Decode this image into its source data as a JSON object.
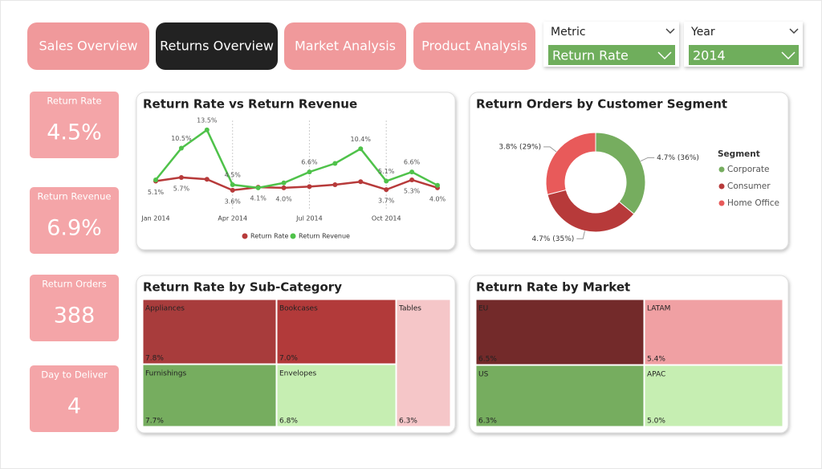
{
  "nav": [
    "Sales Overview",
    "Returns Overview",
    "Market Analysis",
    "Product Analysis"
  ],
  "filters": [
    {
      "label": "Metric",
      "value": "Return Rate"
    },
    {
      "label": "Year",
      "value": "2014"
    }
  ],
  "kpis": [
    {
      "label": "Return Rate",
      "value": "4.5%"
    },
    {
      "label": "Return Revenue",
      "value": "6.9%"
    },
    {
      "label": "Return Orders",
      "value": "388"
    },
    {
      "label": "Day to Deliver",
      "value": "4"
    }
  ],
  "chart_data": [
    {
      "type": "line",
      "title": "Return Rate vs Return Revenue",
      "categories": [
        "Jan 2014",
        null,
        null,
        "Apr 2014",
        null,
        null,
        "Jul 2014",
        null,
        null,
        "Oct 2014",
        null,
        null
      ],
      "ylim": [
        2,
        14
      ],
      "xgrid": true,
      "series": [
        {
          "name": "Return Rate",
          "color": "#b73a3a",
          "values": [
            5.1,
            5.7,
            5.4,
            3.6,
            4.1,
            4.0,
            4.2,
            4.5,
            5.0,
            3.7,
            5.3,
            4.0
          ],
          "value_labels": [
            "5.1%",
            "5.7%",
            null,
            "3.6%",
            "4.1%",
            "4.0%",
            null,
            null,
            null,
            "3.7%",
            "5.3%",
            "4.0%"
          ]
        },
        {
          "name": "Return Revenue",
          "color": "#4fc24a",
          "values": [
            5.3,
            10.5,
            13.5,
            4.5,
            4.0,
            4.8,
            6.6,
            8.0,
            10.4,
            5.1,
            6.6,
            4.4
          ],
          "value_labels": [
            null,
            "10.5%",
            "13.5%",
            "4.5%",
            null,
            null,
            "6.6%",
            null,
            "10.4%",
            "5.1%",
            "6.6%",
            null
          ]
        }
      ]
    },
    {
      "type": "donut",
      "title": "Return Orders by Customer Segment",
      "legend_title": "Segment",
      "categories": [
        "Corporate",
        "Consumer",
        "Home Office"
      ],
      "values": [
        36,
        35,
        29
      ],
      "value_labels": [
        "4.7% (36%)",
        "4.7% (35%)",
        "3.8% (29%)"
      ],
      "colors": [
        "#76ad5f",
        "#b73a3a",
        "#e85a5a"
      ]
    },
    {
      "type": "treemap",
      "title": "Return Rate by Sub-Category",
      "categories": [
        "Appliances",
        "Bookcases",
        "Tables",
        "Furnishings",
        "Envelopes"
      ],
      "values": [
        7.8,
        7.0,
        6.3,
        7.7,
        6.8
      ],
      "value_labels": [
        "7.8%",
        "7.0%",
        "6.3%",
        "7.7%",
        "6.8%"
      ],
      "colors": [
        "#a83c3c",
        "#b23a3a",
        "#f5c6c8",
        "#76ad5f",
        "#c6eeb2"
      ]
    },
    {
      "type": "treemap",
      "title": "Return Rate by Market",
      "categories": [
        "EU",
        "LATAM",
        "US",
        "APAC"
      ],
      "values": [
        6.5,
        5.4,
        6.3,
        5.0
      ],
      "value_labels": [
        "6.5%",
        "5.4%",
        "6.3%",
        "5.0%"
      ],
      "colors": [
        "#732a2a",
        "#f0a0a3",
        "#76ad5f",
        "#c6eeb2"
      ]
    }
  ]
}
